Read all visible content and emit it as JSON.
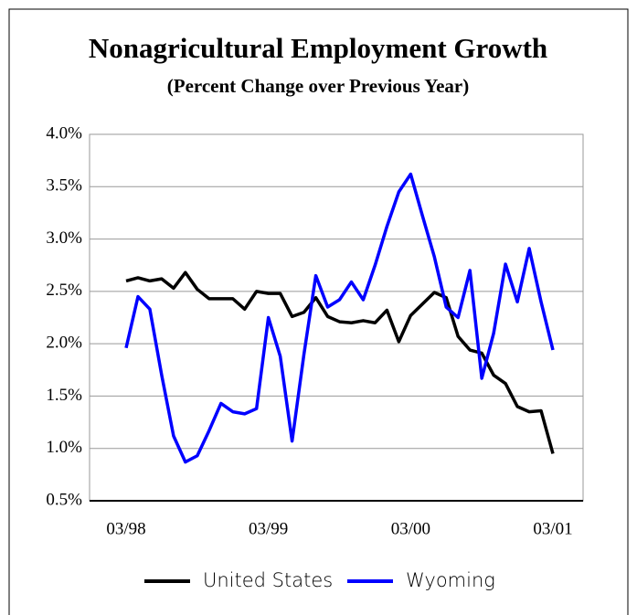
{
  "chart_data": {
    "type": "line",
    "title": "Nonagricultural Employment Growth",
    "subtitle": "(Percent Change over Previous Year)",
    "categories": [
      "03/98",
      null,
      null,
      null,
      null,
      null,
      null,
      null,
      null,
      null,
      null,
      null,
      "03/99",
      null,
      null,
      null,
      null,
      null,
      null,
      null,
      null,
      null,
      null,
      null,
      "03/00",
      null,
      null,
      null,
      null,
      null,
      null,
      null,
      null,
      null,
      null,
      null,
      "03/01"
    ],
    "series": [
      {
        "name": "United States",
        "color": "#000000",
        "values": [
          2.6,
          2.63,
          2.6,
          2.62,
          2.53,
          2.68,
          2.52,
          2.43,
          2.43,
          2.43,
          2.33,
          2.5,
          2.48,
          2.48,
          2.26,
          2.3,
          2.44,
          2.26,
          2.21,
          2.2,
          2.22,
          2.2,
          2.32,
          2.02,
          2.27,
          2.38,
          2.49,
          2.44,
          2.07,
          1.94,
          1.91,
          1.7,
          1.62,
          1.4,
          1.35,
          1.36,
          0.95
        ]
      },
      {
        "name": "Wyoming",
        "color": "#0000ff",
        "values": [
          1.96,
          2.45,
          2.33,
          1.7,
          1.12,
          0.87,
          0.93,
          1.17,
          1.43,
          1.35,
          1.33,
          1.38,
          2.25,
          1.88,
          1.07,
          1.9,
          2.65,
          2.35,
          2.42,
          2.59,
          2.42,
          2.75,
          3.12,
          3.45,
          3.62,
          3.22,
          2.83,
          2.35,
          2.25,
          2.7,
          1.67,
          2.1,
          2.76,
          2.4,
          2.91,
          2.4,
          1.94
        ]
      }
    ],
    "ylim": [
      0.5,
      4.0
    ],
    "yticks": [
      {
        "value": 0.5,
        "label": "0.5%"
      },
      {
        "value": 1.0,
        "label": "1.0%"
      },
      {
        "value": 1.5,
        "label": "1.5%"
      },
      {
        "value": 2.0,
        "label": "2.0%"
      },
      {
        "value": 2.5,
        "label": "2.5%"
      },
      {
        "value": 3.0,
        "label": "3.0%"
      },
      {
        "value": 3.5,
        "label": "3.5%"
      },
      {
        "value": 4.0,
        "label": "4.0%"
      }
    ],
    "grid": true,
    "legend": "bottom"
  }
}
